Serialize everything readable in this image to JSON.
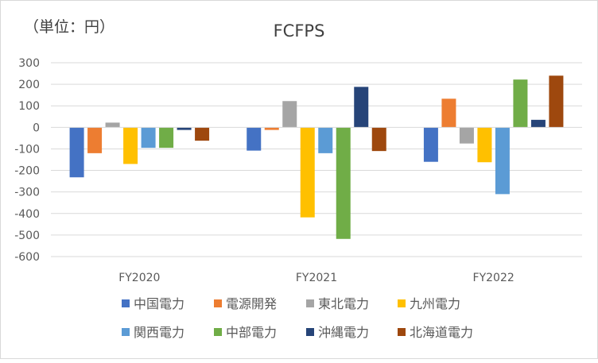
{
  "chart_data": {
    "type": "bar",
    "title": "FCFPS",
    "unit_label": "（単位：円）",
    "categories": [
      "FY2020",
      "FY2021",
      "FY2022"
    ],
    "ylim": [
      -600,
      300
    ],
    "yticks": [
      300,
      200,
      100,
      0,
      -100,
      -200,
      -300,
      -400,
      -500,
      -600
    ],
    "grid": true,
    "legend_position": "bottom",
    "series": [
      {
        "name": "中国電力",
        "color": "#4472C4",
        "values": [
          -232,
          -108,
          -160
        ]
      },
      {
        "name": "電源開発",
        "color": "#ED7D31",
        "values": [
          -120,
          -12,
          133
        ]
      },
      {
        "name": "東北電力",
        "color": "#A5A5A5",
        "values": [
          22,
          122,
          -75
        ]
      },
      {
        "name": "九州電力",
        "color": "#FFC000",
        "values": [
          -170,
          -418,
          -162
        ]
      },
      {
        "name": "関西電力",
        "color": "#5B9BD5",
        "values": [
          -95,
          -120,
          -310
        ]
      },
      {
        "name": "中部電力",
        "color": "#70AD47",
        "values": [
          -95,
          -518,
          222
        ]
      },
      {
        "name": "沖縄電力",
        "color": "#264478",
        "values": [
          -12,
          188,
          35
        ]
      },
      {
        "name": "北海道電力",
        "color": "#9E480E",
        "values": [
          -62,
          -110,
          240
        ]
      }
    ]
  }
}
